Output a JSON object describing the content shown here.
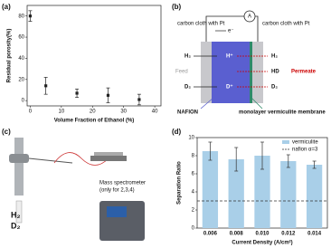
{
  "chart_data": [
    {
      "type": "scatter",
      "panel": "(a)",
      "x_label": "Volume Fraction of Ethanol (%)",
      "y_label": "Residual porosity(%)",
      "x": [
        0,
        5,
        15,
        25,
        35
      ],
      "values": [
        80,
        14,
        7,
        5,
        1
      ],
      "errors": [
        5,
        8,
        4,
        7,
        5
      ],
      "color": "#222222",
      "xlim": [
        -1,
        42
      ],
      "xticks": [
        0,
        10,
        20,
        30,
        40
      ],
      "ylim": [
        -5,
        90
      ],
      "yticks": [
        0,
        20,
        40,
        60,
        80
      ]
    },
    {
      "type": "bar",
      "panel": "(d)",
      "x_label": "Current Density (A/cm²)",
      "y_label": "Separation Ratio",
      "categories": [
        "0.006",
        "0.008",
        "0.010",
        "0.012",
        "0.014"
      ],
      "series": [
        {
          "name": "vermiculite",
          "color": "#a9cfe8",
          "values": [
            8.5,
            7.6,
            8.0,
            7.4,
            7.0
          ],
          "errors": [
            1.0,
            1.3,
            1.5,
            0.7,
            0.4
          ]
        }
      ],
      "reference": {
        "name": "nafion α=3",
        "value": 3
      },
      "ylim": [
        0,
        10
      ],
      "yticks": [
        0,
        2,
        4,
        6,
        8,
        10
      ]
    }
  ],
  "diagram": {
    "panel": "(b)",
    "left_electrode": "carbon cloth with Pt",
    "right_electrode": "carbon cloth with Pt",
    "meter": "A",
    "electron": "e⁻",
    "feed": "Feed",
    "feed_gases": [
      "H₂",
      "D₂"
    ],
    "ions": [
      "H⁺",
      "D⁺"
    ],
    "permeate_gases": [
      "H₂",
      "HD",
      "D₂"
    ],
    "permeate": "Permeate",
    "nafion": "NAFION",
    "membrane": "monolayer vermiculite membrane"
  },
  "setup": {
    "panel": "(c)",
    "instrument": "Mass spectrometer",
    "note": "(only for 2,3,4)",
    "gases": [
      "H₂",
      "D₂"
    ]
  }
}
